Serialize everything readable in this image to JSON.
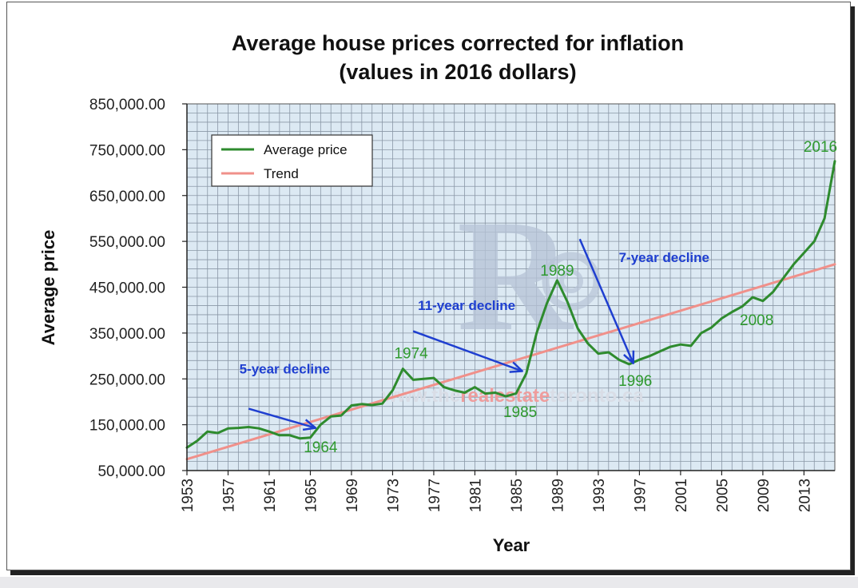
{
  "chart_data": {
    "type": "line",
    "title": "Average house prices corrected for inflation",
    "subtitle": "(values in 2016 dollars)",
    "xlabel": "Year",
    "ylabel": "Average price",
    "xlim": [
      1953,
      2016
    ],
    "ylim": [
      50000,
      850000
    ],
    "y_ticks": [
      "850,000.00",
      "750,000.00",
      "650,000.00",
      "550,000.00",
      "450,000.00",
      "350,000.00",
      "250,000.00",
      "150,000.00",
      "50,000.00"
    ],
    "y_tick_values": [
      850000,
      750000,
      650000,
      550000,
      450000,
      350000,
      250000,
      150000,
      50000
    ],
    "x_ticks": [
      "1953",
      "1957",
      "1961",
      "1965",
      "1969",
      "1973",
      "1977",
      "1981",
      "1985",
      "1989",
      "1993",
      "1997",
      "2001",
      "2005",
      "2009",
      "2013"
    ],
    "x_tick_values": [
      1953,
      1957,
      1961,
      1965,
      1969,
      1973,
      1977,
      1981,
      1985,
      1989,
      1993,
      1997,
      2001,
      2005,
      2009,
      2013
    ],
    "grid": true,
    "legend_position": "top-left",
    "series": [
      {
        "name": "Average price",
        "color": "#2e8b2e",
        "x": [
          1953,
          1954,
          1955,
          1956,
          1957,
          1958,
          1959,
          1960,
          1961,
          1962,
          1963,
          1964,
          1965,
          1966,
          1967,
          1968,
          1969,
          1970,
          1971,
          1972,
          1973,
          1974,
          1975,
          1976,
          1977,
          1978,
          1979,
          1980,
          1981,
          1982,
          1983,
          1984,
          1985,
          1986,
          1987,
          1988,
          1989,
          1990,
          1991,
          1992,
          1993,
          1994,
          1995,
          1996,
          1997,
          1998,
          1999,
          2000,
          2001,
          2002,
          2003,
          2004,
          2005,
          2006,
          2007,
          2008,
          2009,
          2010,
          2011,
          2012,
          2013,
          2014,
          2015,
          2016
        ],
        "y": [
          100000,
          115000,
          135000,
          132000,
          142000,
          143000,
          145000,
          142000,
          135000,
          127000,
          127000,
          120000,
          122000,
          150000,
          168000,
          170000,
          192000,
          195000,
          193000,
          196000,
          225000,
          272000,
          248000,
          250000,
          252000,
          232000,
          225000,
          220000,
          232000,
          218000,
          220000,
          212000,
          218000,
          262000,
          350000,
          415000,
          465000,
          418000,
          360000,
          327000,
          305000,
          308000,
          292000,
          282000,
          292000,
          300000,
          310000,
          320000,
          325000,
          322000,
          350000,
          362000,
          382000,
          396000,
          408000,
          428000,
          420000,
          440000,
          470000,
          500000,
          525000,
          550000,
          600000,
          725000
        ]
      },
      {
        "name": "Trend",
        "color": "#f0908a",
        "x": [
          1953,
          2016
        ],
        "y": [
          75000,
          500000
        ]
      }
    ],
    "annotations": {
      "years": [
        {
          "text": "1964",
          "x": 1966,
          "y": 90000
        },
        {
          "text": "1974",
          "x": 1974.8,
          "y": 295000
        },
        {
          "text": "1985",
          "x": 1985.4,
          "y": 167000
        },
        {
          "text": "1989",
          "x": 1989,
          "y": 475000
        },
        {
          "text": "1996",
          "x": 1996.6,
          "y": 235000
        },
        {
          "text": "2008",
          "x": 2008.4,
          "y": 367000
        },
        {
          "text": "2016",
          "x": 2014.6,
          "y": 745000
        }
      ],
      "declines": [
        {
          "text": "5-year decline",
          "x": 1962.5,
          "y": 262000,
          "arrow_from": [
            1959,
            185000
          ],
          "arrow_to": [
            1965.5,
            143000
          ]
        },
        {
          "text": "11-year decline",
          "x": 1980.2,
          "y": 400000,
          "arrow_from": [
            1975,
            354000
          ],
          "arrow_to": [
            1985.6,
            267000
          ]
        },
        {
          "text": "7-year decline",
          "x": 1999.4,
          "y": 505000,
          "arrow_from": [
            1991.2,
            555000
          ],
          "arrow_to": [
            1996.4,
            284000
          ]
        }
      ]
    },
    "watermark": {
      "text_gray_1": "www.the",
      "text_red": "realestate",
      "text_gray_2": "toronto.ca"
    }
  }
}
